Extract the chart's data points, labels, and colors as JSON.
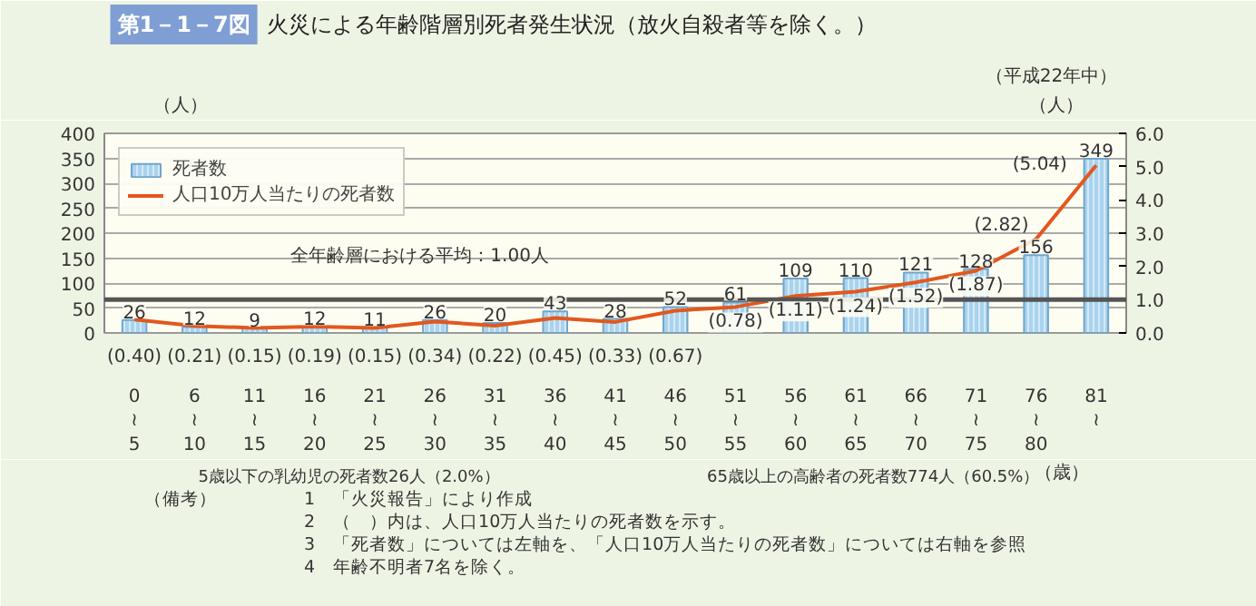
{
  "chart_data": {
    "type": "bar",
    "title": "火災による年齢階層別死者発生状況（放火自殺者等を除く。）",
    "categories": [
      "0\n≀\n5",
      "6\n≀\n10",
      "11\n≀\n15",
      "16\n≀\n20",
      "21\n≀\n25",
      "26\n≀\n30",
      "31\n≀\n35",
      "36\n≀\n40",
      "41\n≀\n45",
      "46\n≀\n50",
      "51\n≀\n55",
      "56\n≀\n60",
      "61\n≀\n65",
      "66\n≀\n70",
      "71\n≀\n75",
      "76\n≀\n80",
      "81\n≀"
    ],
    "series": [
      {
        "name": "死者数",
        "color": "#a9d3ee",
        "values": [
          26,
          12,
          9,
          12,
          11,
          26,
          20,
          43,
          28,
          52,
          61,
          109,
          110,
          121,
          128,
          156,
          349
        ],
        "value_labels": [
          "26",
          "12",
          "9",
          "12",
          "11",
          "26",
          "20",
          "43",
          "28",
          "52",
          "61",
          "109",
          "110",
          "121",
          "128",
          "156",
          "349"
        ]
      },
      {
        "name": "人口10万人当たりの死者数",
        "type": "line",
        "axis": "y2",
        "color": "#e2581e",
        "values": [
          0.4,
          0.21,
          0.15,
          0.19,
          0.15,
          0.34,
          0.22,
          0.45,
          0.33,
          0.67,
          0.78,
          1.11,
          1.24,
          1.52,
          1.87,
          2.82,
          5.04
        ],
        "value_labels": [
          "(0.40)",
          "(0.21)",
          "(0.15)",
          "(0.19)",
          "(0.15)",
          "(0.34)",
          "(0.22)",
          "(0.45)",
          "(0.33)",
          "(0.67)",
          "(0.78)",
          "(1.11)",
          "(1.24)",
          "(1.52)",
          "(1.87)",
          "(2.82)",
          "(5.04)"
        ]
      }
    ],
    "ylabel": "（人）",
    "y2label": "（人）",
    "xlabel": "（歳）",
    "ylim": [
      0,
      400
    ],
    "yticks": [
      0,
      50,
      100,
      150,
      200,
      250,
      300,
      350,
      400
    ],
    "y2lim": [
      0,
      6
    ],
    "y2ticks": [
      {
        "value": 0,
        "label": "0.0"
      },
      {
        "value": 1,
        "label": "1.0"
      },
      {
        "value": 2,
        "label": "2.0"
      },
      {
        "value": 3,
        "label": "3.0"
      },
      {
        "value": 4,
        "label": "4.0"
      },
      {
        "value": 5,
        "label": "5.0"
      },
      {
        "value": 6,
        "label": "6.0"
      }
    ],
    "ref_lines": [
      {
        "axis": "y2",
        "value": 1.0,
        "label": "全年齢層における平均：1.00人",
        "color": "#555555"
      }
    ],
    "grid": "y",
    "legend": "top left",
    "annotations": [
      "第1－1－7図",
      "（平成22年中）",
      "5歳以下の乳幼児の死者数26人（2.0%）",
      "65歳以上の高齢者の死者数774人（60.5%）",
      "（備考）",
      "1　「火災報告」により作成",
      "2　（　）内は、人口10万人当たりの死者数を示す。",
      "3　「死者数」については左軸を、「人口10万人当たりの死者数」については右軸を参照",
      "4　年齢不明者7名を除く。"
    ]
  }
}
